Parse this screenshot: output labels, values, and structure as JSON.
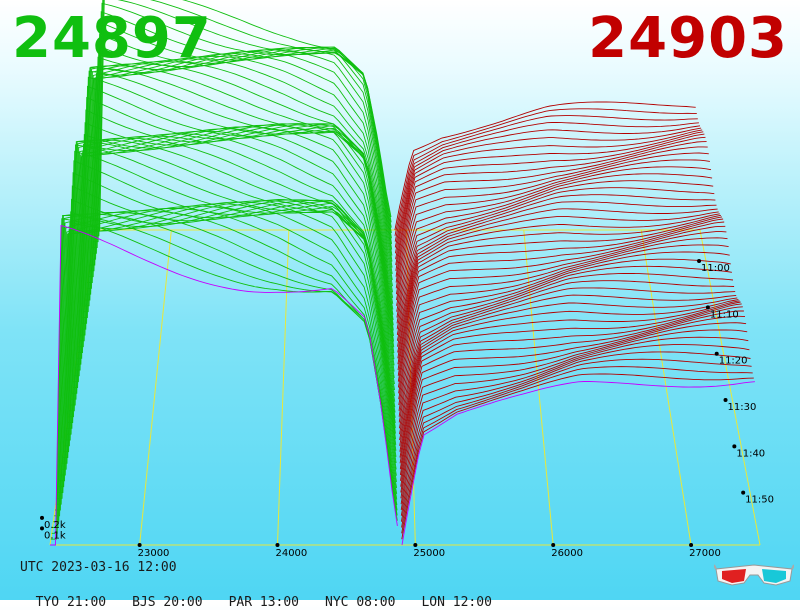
{
  "header": {
    "bid_price": "24897",
    "ask_price": "24903",
    "bid_color": "#10bf10",
    "ask_color": "#c10000"
  },
  "footer": {
    "utc_label": "UTC 2023-03-16 12:00",
    "zones": [
      {
        "label": "TYO 21:00"
      },
      {
        "label": "BJS 20:00"
      },
      {
        "label": "PAR 13:00"
      },
      {
        "label": "NYC 08:00"
      },
      {
        "label": "LON 12:00"
      }
    ]
  },
  "icons": [
    "3d-glasses-icon"
  ],
  "chart_data": {
    "type": "area",
    "projection": "3d-perspective",
    "x_ticks": [
      "23000",
      "24000",
      "25000",
      "26000",
      "27000"
    ],
    "x_tick_values": [
      23000,
      24000,
      25000,
      26000,
      27000
    ],
    "x_range": [
      22350,
      27500
    ],
    "time_ticks": [
      "11:00",
      "11:10",
      "11:20",
      "11:30",
      "11:40",
      "11:50"
    ],
    "time_tick_minutes": [
      0,
      10,
      20,
      30,
      40,
      50
    ],
    "time_range_minutes": [
      -8,
      60
    ],
    "depth_ticks": [
      "0.1k",
      "0.2k"
    ],
    "depth_tick_values": [
      100,
      200
    ],
    "bid_price": 24897,
    "ask_price": 24903,
    "bid_color": "#10bf10",
    "ask_color": "#b30000",
    "latest_color": "#c400ff",
    "grid_color": "#e8e83a",
    "snapshot_count": 55,
    "bid_depth_profile": [
      {
        "price": 22400,
        "depth": 1400
      },
      {
        "price": 23000,
        "depth": 1360
      },
      {
        "price": 23600,
        "depth": 1330
      },
      {
        "price": 24000,
        "depth": 1300
      },
      {
        "price": 24400,
        "depth": 1250
      },
      {
        "price": 24650,
        "depth": 1050
      },
      {
        "price": 24760,
        "depth": 600
      },
      {
        "price": 24850,
        "depth": 150
      },
      {
        "price": 24897,
        "depth": 0
      }
    ],
    "ask_depth_profile": [
      {
        "price": 24903,
        "depth": 0
      },
      {
        "price": 24950,
        "depth": 180
      },
      {
        "price": 25050,
        "depth": 520
      },
      {
        "price": 25300,
        "depth": 600
      },
      {
        "price": 25800,
        "depth": 660
      },
      {
        "price": 26200,
        "depth": 720
      },
      {
        "price": 26800,
        "depth": 760
      },
      {
        "price": 27400,
        "depth": 800
      }
    ]
  }
}
